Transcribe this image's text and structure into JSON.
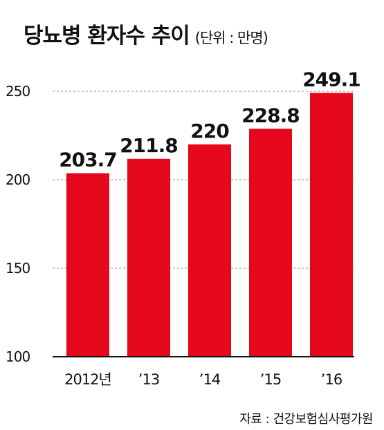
{
  "chart_data": {
    "type": "bar",
    "title": "당뇨병 환자수 추이",
    "subtitle": "(단위 : 만명)",
    "categories": [
      "2012년",
      "’13",
      "’14",
      "’15",
      "’16"
    ],
    "values": [
      203.7,
      211.8,
      220,
      228.8,
      249.1
    ],
    "value_labels": [
      "203.7",
      "211.8",
      "220",
      "228.8",
      "249.1"
    ],
    "ylim": [
      100,
      250
    ],
    "yticks": [
      100,
      150,
      200,
      250
    ],
    "grid": true,
    "bar_color": "#e5071b",
    "source": "자료 : 건강보험심사평가원"
  }
}
